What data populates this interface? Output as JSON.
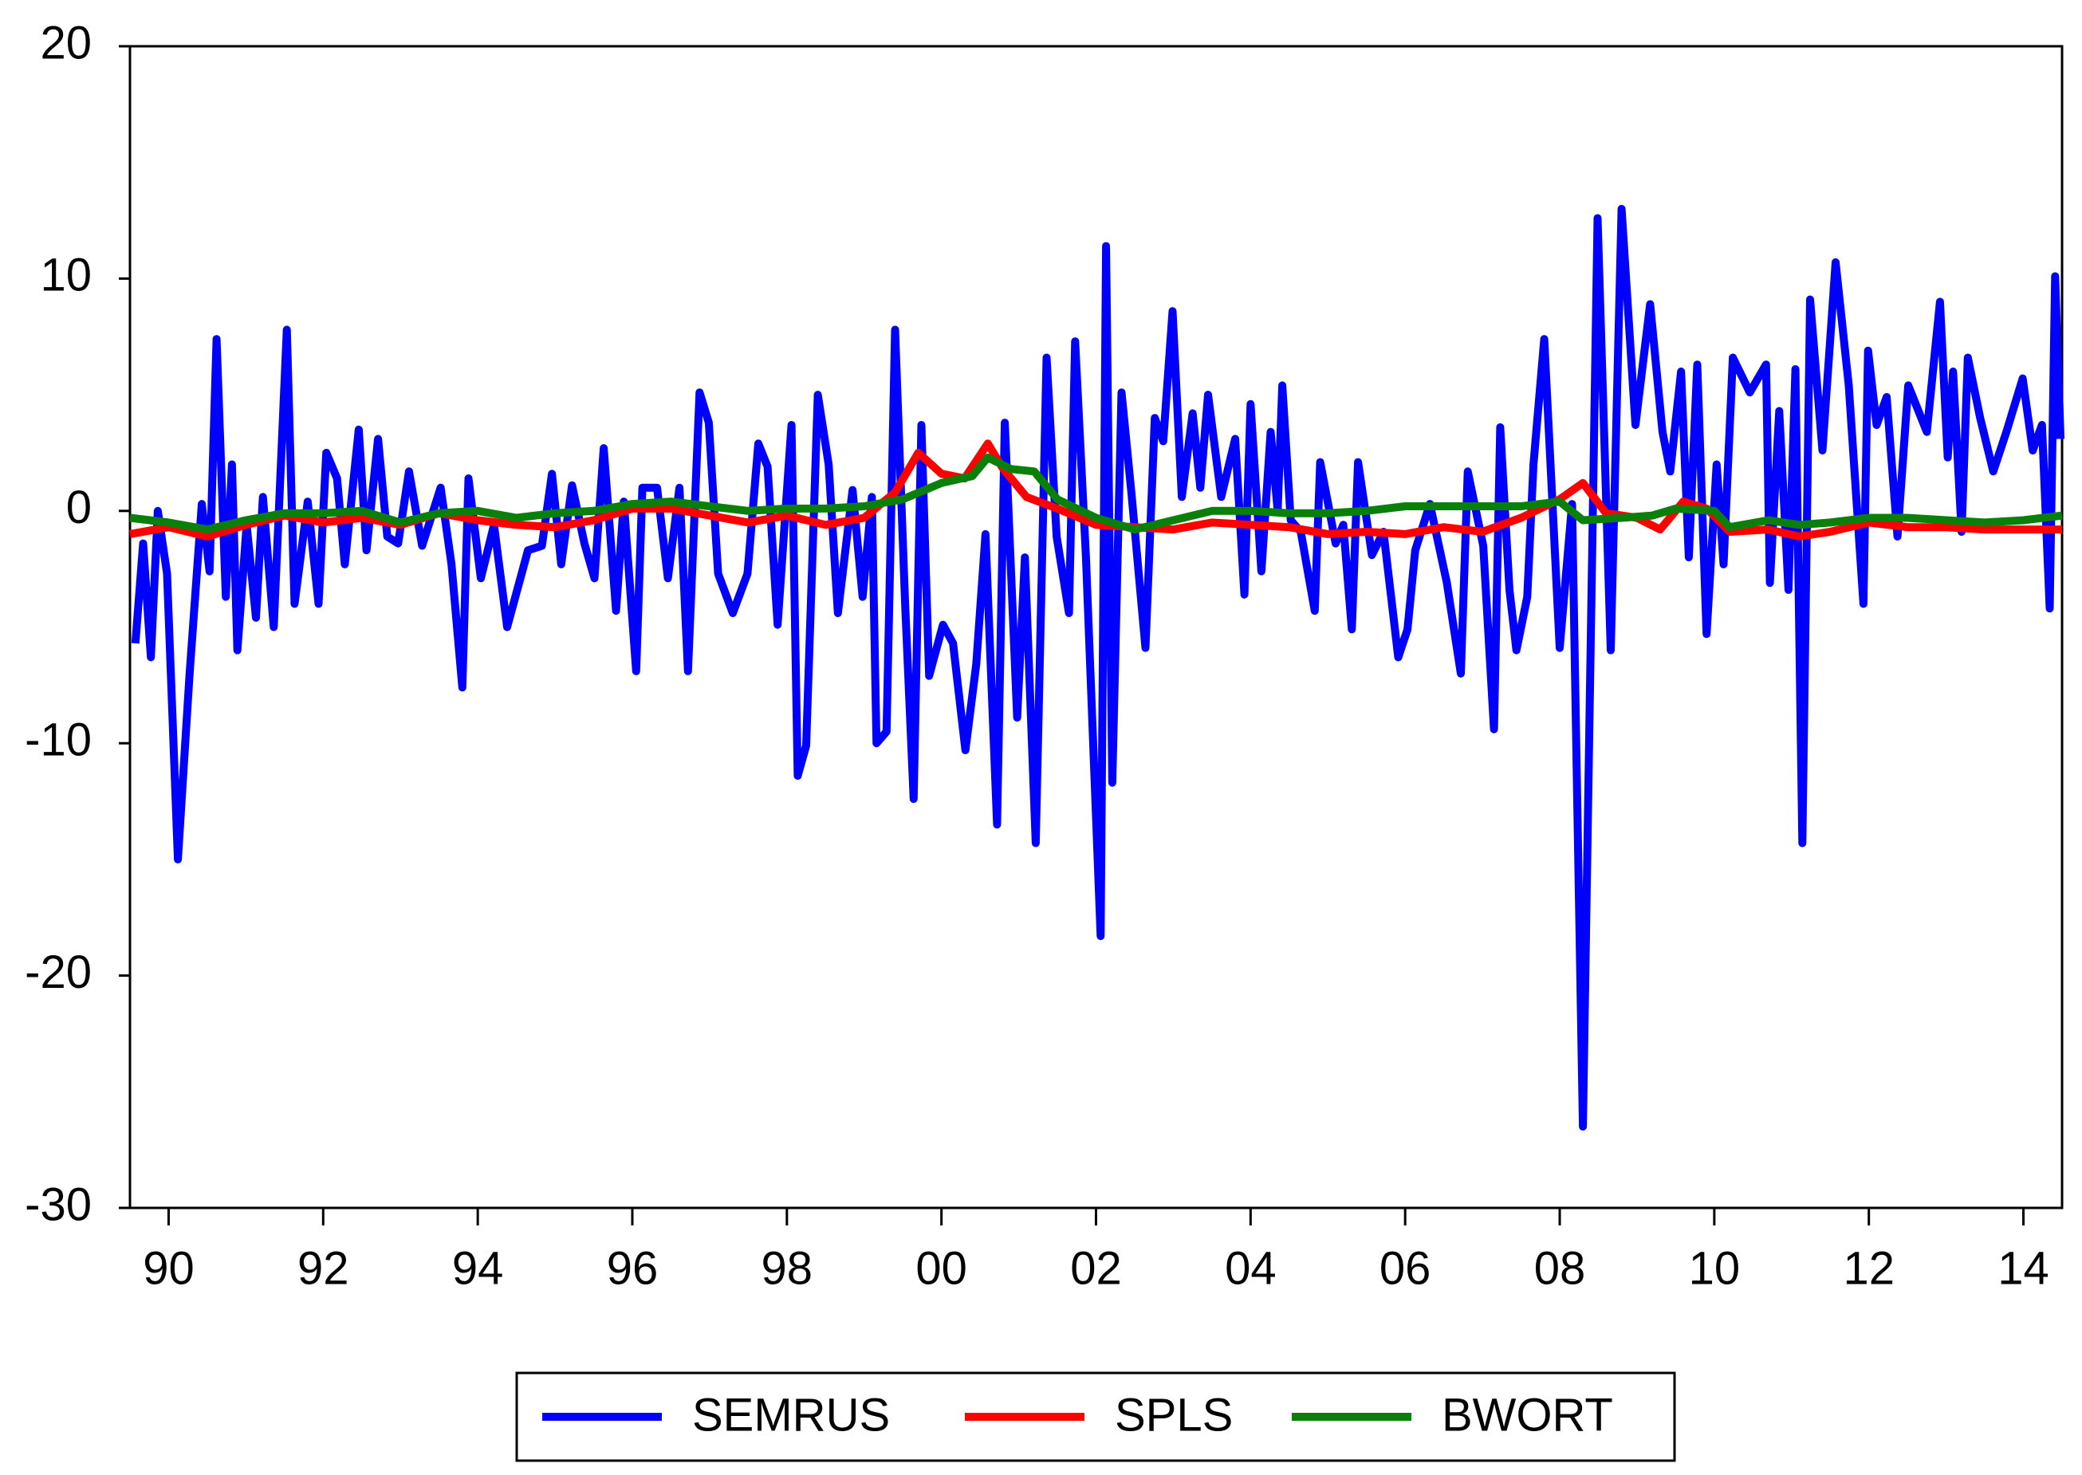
{
  "chart_data": {
    "type": "line",
    "xlim": [
      1990,
      2015
    ],
    "ylim": [
      -30,
      20
    ],
    "yticks": [
      -30,
      -20,
      -10,
      0,
      10,
      20
    ],
    "xticks": [
      {
        "value": 1990.5,
        "label": "90"
      },
      {
        "value": 1992.5,
        "label": "92"
      },
      {
        "value": 1994.5,
        "label": "94"
      },
      {
        "value": 1996.5,
        "label": "96"
      },
      {
        "value": 1998.5,
        "label": "98"
      },
      {
        "value": 2000.5,
        "label": "00"
      },
      {
        "value": 2002.5,
        "label": "02"
      },
      {
        "value": 2004.5,
        "label": "04"
      },
      {
        "value": 2006.5,
        "label": "06"
      },
      {
        "value": 2008.5,
        "label": "08"
      },
      {
        "value": 2010.5,
        "label": "10"
      },
      {
        "value": 2012.5,
        "label": "12"
      },
      {
        "value": 2014.5,
        "label": "14"
      }
    ],
    "grid": false,
    "legend": "bottom",
    "series": [
      {
        "name": "SEMRUS",
        "color": "#0000ff",
        "x": [
          1990.07,
          1990.17,
          1990.27,
          1990.36,
          1990.48,
          1990.62,
          1990.77,
          1990.93,
          1991.03,
          1991.12,
          1991.24,
          1991.32,
          1991.39,
          1991.51,
          1991.63,
          1991.72,
          1991.86,
          1992.03,
          1992.13,
          1992.3,
          1992.44,
          1992.54,
          1992.68,
          1992.78,
          1992.96,
          1993.06,
          1993.21,
          1993.33,
          1993.47,
          1993.61,
          1993.78,
          1994.02,
          1994.16,
          1994.3,
          1994.38,
          1994.54,
          1994.71,
          1994.88,
          1995.15,
          1995.33,
          1995.46,
          1995.58,
          1995.72,
          1995.88,
          1996.01,
          1996.13,
          1996.29,
          1996.39,
          1996.55,
          1996.63,
          1996.82,
          1996.96,
          1997.11,
          1997.22,
          1997.37,
          1997.49,
          1997.61,
          1997.8,
          1997.99,
          1998.13,
          1998.25,
          1998.38,
          1998.56,
          1998.64,
          1998.75,
          1998.9,
          1999.04,
          1999.16,
          1999.35,
          1999.48,
          1999.6,
          1999.66,
          1999.79,
          1999.9,
          2000.03,
          2000.14,
          2000.24,
          2000.34,
          2000.52,
          2000.65,
          2000.81,
          2000.95,
          2001.07,
          2001.22,
          2001.32,
          2001.48,
          2001.58,
          2001.72,
          2001.86,
          2001.99,
          2002.15,
          2002.23,
          2002.37,
          2002.56,
          2002.63,
          2002.71,
          2002.83,
          2002.96,
          2003.14,
          2003.26,
          2003.37,
          2003.49,
          2003.61,
          2003.75,
          2003.85,
          2003.95,
          2004.12,
          2004.3,
          2004.42,
          2004.5,
          2004.64,
          2004.76,
          2004.85,
          2004.91,
          2005.02,
          2005.15,
          2005.33,
          2005.4,
          2005.6,
          2005.7,
          2005.81,
          2005.89,
          2006.07,
          2006.22,
          2006.41,
          2006.53,
          2006.63,
          2006.82,
          2007.04,
          2007.22,
          2007.31,
          2007.51,
          2007.65,
          2007.73,
          2007.85,
          2007.94,
          2008.08,
          2008.16,
          2008.3,
          2008.5,
          2008.66,
          2008.8,
          2008.99,
          2009.16,
          2009.3,
          2009.48,
          2009.67,
          2009.83,
          2009.93,
          2010.07,
          2010.17,
          2010.28,
          2010.4,
          2010.53,
          2010.62,
          2010.74,
          2010.96,
          2011.17,
          2011.22,
          2011.34,
          2011.46,
          2011.55,
          2011.64,
          2011.74,
          2011.9,
          2012.07,
          2012.24,
          2012.43,
          2012.49,
          2012.6,
          2012.73,
          2012.87,
          2013.01,
          2013.25,
          2013.42,
          2013.52,
          2013.59,
          2013.7,
          2013.78,
          2013.94,
          2014.11,
          2014.28,
          2014.49,
          2014.62,
          2014.74,
          2014.84,
          2014.91,
          2014.98
        ],
        "values": [
          -5.7,
          -1.4,
          -6.3,
          0,
          -2.7,
          -15,
          -7.1,
          0.3,
          -2.6,
          7.4,
          -3.7,
          2,
          -6,
          -0.6,
          -4.6,
          0.6,
          -5,
          7.8,
          -4,
          0.4,
          -4,
          2.5,
          1.4,
          -2.3,
          3.5,
          -1.7,
          3.1,
          -1.1,
          -1.4,
          1.7,
          -1.5,
          1,
          -2.3,
          -7.6,
          1.4,
          -2.9,
          -0.6,
          -5,
          -1.7,
          -1.5,
          1.6,
          -2.3,
          1.1,
          -1.4,
          -2.9,
          2.7,
          -4.3,
          0.4,
          -6.9,
          1,
          1,
          -2.9,
          1,
          -6.9,
          5.1,
          3.8,
          -2.7,
          -4.4,
          -2.7,
          2.9,
          1.9,
          -4.9,
          3.7,
          -11.4,
          -10.1,
          5,
          2,
          -4.4,
          0.9,
          -3.7,
          0.6,
          -10,
          -9.5,
          7.8,
          -4,
          -12.4,
          3.7,
          -7.1,
          -4.9,
          -5.7,
          -10.3,
          -6.6,
          -1,
          -13.5,
          3.8,
          -8.9,
          -2,
          -14.3,
          6.6,
          -1.1,
          -4.4,
          7.3,
          -2,
          -18.3,
          11.4,
          -11.7,
          5.1,
          0.7,
          -5.9,
          4,
          3,
          8.6,
          0.6,
          4.2,
          1,
          5,
          0.6,
          3.1,
          -3.6,
          4.6,
          -2.6,
          3.4,
          0,
          5.4,
          -0.4,
          -0.9,
          -4.3,
          2.1,
          -1.4,
          -0.6,
          -5.1,
          2.1,
          -1.9,
          -0.9,
          -6.3,
          -5.1,
          -1.7,
          0.3,
          -3.1,
          -7,
          1.7,
          -1.5,
          -9.4,
          3.6,
          -3.4,
          -6,
          -3.7,
          2,
          7.4,
          -5.9,
          0.3,
          -26.5,
          12.6,
          -6,
          13,
          3.7,
          8.9,
          3.4,
          1.7,
          6,
          -2,
          6.3,
          -5.3,
          2,
          -2.3,
          6.6,
          5.1,
          6.3,
          -3.1,
          4.3,
          -3.4,
          6.1,
          -14.3,
          9.1,
          2.6,
          10.7,
          5.4,
          -4,
          6.9,
          3.7,
          4.9,
          -1.1,
          5.4,
          3.4,
          9,
          2.3,
          6,
          -0.9,
          6.6,
          4,
          1.7,
          3.4,
          5.7,
          2.6,
          3.7,
          -4.2,
          10.1,
          3.1
        ]
      },
      {
        "name": "SPLS",
        "color": "#ff0000",
        "x": [
          1990,
          1990.5,
          1991,
          1991.5,
          1992,
          1992.5,
          1993,
          1993.5,
          1994,
          1994.5,
          1995,
          1995.5,
          1996,
          1996.5,
          1997,
          1997.5,
          1998,
          1998.5,
          1999,
          1999.5,
          1999.9,
          2000.2,
          2000.5,
          2000.8,
          2001,
          2001.1,
          2001.3,
          2001.6,
          2002,
          2002.5,
          2003,
          2003.5,
          2004,
          2004.5,
          2005,
          2005.5,
          2006,
          2006.5,
          2007,
          2007.5,
          2008,
          2008.5,
          2008.8,
          2009.1,
          2009.5,
          2009.8,
          2010.1,
          2010.4,
          2010.7,
          2011.2,
          2011.6,
          2012,
          2012.5,
          2013,
          2013.5,
          2014,
          2014.5,
          2015
        ],
        "values": [
          -1,
          -0.7,
          -1.1,
          -0.6,
          -0.2,
          -0.5,
          -0.3,
          -0.6,
          -0.1,
          -0.4,
          -0.6,
          -0.7,
          -0.4,
          0.1,
          0.1,
          -0.2,
          -0.5,
          -0.2,
          -0.6,
          -0.3,
          0.8,
          2.5,
          1.6,
          1.4,
          2.4,
          2.9,
          1.8,
          0.6,
          0.1,
          -0.6,
          -0.7,
          -0.8,
          -0.5,
          -0.6,
          -0.7,
          -1,
          -0.9,
          -1,
          -0.7,
          -0.9,
          -0.3,
          0.5,
          1.2,
          -0.1,
          -0.3,
          -0.8,
          0.4,
          0.1,
          -0.9,
          -0.8,
          -1.1,
          -0.9,
          -0.5,
          -0.7,
          -0.7,
          -0.8,
          -0.8,
          -0.8
        ]
      },
      {
        "name": "BWORT",
        "color": "#0a800a",
        "x": [
          1990,
          1990.5,
          1991,
          1991.5,
          1992,
          1992.5,
          1993,
          1993.5,
          1994,
          1994.5,
          1995,
          1995.5,
          1996,
          1996.5,
          1997,
          1997.5,
          1998,
          1998.5,
          1999,
          1999.5,
          2000,
          2000.5,
          2000.9,
          2001.1,
          2001.4,
          2001.7,
          2002,
          2002.5,
          2003,
          2003.5,
          2004,
          2004.5,
          2005,
          2005.5,
          2006,
          2006.5,
          2007,
          2007.5,
          2008,
          2008.5,
          2008.8,
          2009.3,
          2009.7,
          2010,
          2010.5,
          2010.7,
          2011.2,
          2011.6,
          2012,
          2012.5,
          2013,
          2013.5,
          2014,
          2014.5,
          2015
        ],
        "values": [
          -0.3,
          -0.5,
          -0.8,
          -0.4,
          -0.1,
          -0.1,
          0,
          -0.5,
          -0.1,
          0,
          -0.3,
          -0.1,
          0,
          0.3,
          0.4,
          0.2,
          0,
          0.1,
          0.1,
          0.2,
          0.5,
          1.2,
          1.5,
          2.3,
          1.8,
          1.7,
          0.5,
          -0.3,
          -0.8,
          -0.4,
          0,
          0,
          -0.1,
          -0.1,
          0,
          0.2,
          0.2,
          0.2,
          0.2,
          0.4,
          -0.4,
          -0.3,
          -0.2,
          0.1,
          0,
          -0.7,
          -0.4,
          -0.6,
          -0.5,
          -0.3,
          -0.3,
          -0.4,
          -0.5,
          -0.4,
          -0.2
        ]
      }
    ]
  }
}
